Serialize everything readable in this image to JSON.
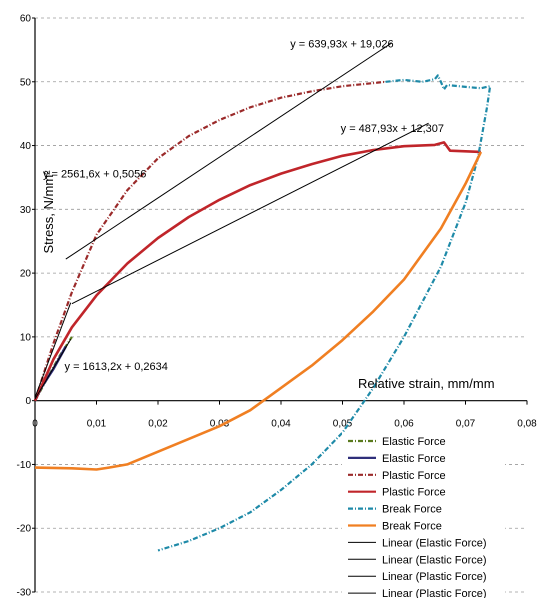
{
  "chart_data": {
    "type": "line",
    "xlabel": "Relative strain, mm/mm",
    "ylabel": "Stress, N/mm²",
    "xlim": [
      0,
      0.08
    ],
    "ylim": [
      -30,
      60
    ],
    "x_ticks": [
      "0",
      "0,01",
      "0,02",
      "0,03",
      "0,04",
      "0,05",
      "0,06",
      "0,07",
      "0,08"
    ],
    "y_ticks": [
      "-30",
      "-20",
      "-10",
      "0",
      "10",
      "20",
      "30",
      "40",
      "50",
      "60"
    ],
    "grid": "horizontal dashed",
    "legend_position": "bottom-right",
    "series": [
      {
        "name": "Elastic Force",
        "color": "#5a7a1e",
        "style": "dash-dot",
        "x": [
          0,
          0.002,
          0.004,
          0.006
        ],
        "y": [
          0,
          3.5,
          7,
          10
        ]
      },
      {
        "name": "Elastic Force",
        "color": "#2f2f7a",
        "style": "solid",
        "x": [
          0,
          0.001,
          0.003,
          0.005
        ],
        "y": [
          0,
          2,
          5,
          8.5
        ]
      },
      {
        "name": "Plastic Force",
        "color": "#9b2a2a",
        "style": "dash-dot",
        "x": [
          0,
          0.003,
          0.006,
          0.01,
          0.015,
          0.02,
          0.025,
          0.03,
          0.035,
          0.04,
          0.045,
          0.05,
          0.055,
          0.057
        ],
        "y": [
          0,
          9,
          17,
          26,
          33,
          38,
          41.5,
          44,
          46,
          47.5,
          48.5,
          49.3,
          49.8,
          50
        ]
      },
      {
        "name": "Plastic Force",
        "color": "#c0252a",
        "style": "solid",
        "x": [
          0,
          0.003,
          0.006,
          0.01,
          0.015,
          0.02,
          0.025,
          0.03,
          0.035,
          0.04,
          0.045,
          0.05,
          0.055,
          0.06,
          0.065,
          0.0665,
          0.0675,
          0.0725
        ],
        "y": [
          0,
          6.5,
          11.5,
          16.5,
          21.5,
          25.5,
          28.8,
          31.5,
          33.8,
          35.6,
          37.1,
          38.4,
          39.3,
          39.9,
          40.1,
          40.5,
          39.2,
          39
        ]
      },
      {
        "name": "Break Force",
        "color": "#1e8aa8",
        "style": "dash-dot",
        "x": [
          0.057,
          0.06,
          0.063,
          0.065,
          0.0655,
          0.066,
          0.0665,
          0.067,
          0.07,
          0.0725,
          0.074,
          0.0735,
          0.072,
          0.07,
          0.066,
          0.06,
          0.055,
          0.05,
          0.045,
          0.04,
          0.035,
          0.03,
          0.025,
          0.02
        ],
        "y": [
          50,
          50.3,
          50,
          50.4,
          51,
          50,
          48.8,
          49.5,
          49.2,
          49,
          49.3,
          46,
          38,
          31,
          21,
          10,
          2,
          -5,
          -10,
          -14,
          -17.5,
          -20,
          -22,
          -23.5
        ]
      },
      {
        "name": "Break Force",
        "color": "#f07f22",
        "style": "solid",
        "x": [
          0.0725,
          0.07,
          0.066,
          0.06,
          0.055,
          0.05,
          0.045,
          0.04,
          0.035,
          0.03,
          0.025,
          0.02,
          0.015,
          0.012,
          0.01,
          0.006,
          0
        ],
        "y": [
          39,
          34,
          27,
          19,
          14,
          9.5,
          5.5,
          2,
          -1.5,
          -4,
          -6,
          -8,
          -10,
          -10.5,
          -10.8,
          -10.6,
          -10.5
        ]
      },
      {
        "name": "Linear (Elastic Force)",
        "color": "#000000",
        "style": "solid",
        "x": [
          0,
          0.0058
        ],
        "y": [
          0.5056,
          15.36
        ]
      },
      {
        "name": "Linear (Elastic Force)",
        "color": "#000000",
        "style": "solid",
        "x": [
          0,
          0.0058
        ],
        "y": [
          0.2634,
          9.62
        ]
      },
      {
        "name": "Linear (Plastic Force)",
        "color": "#000000",
        "style": "solid",
        "x": [
          0.005,
          0.058
        ],
        "y": [
          22.2,
          56.1
        ]
      },
      {
        "name": "Linear (Plastic Force)",
        "color": "#000000",
        "style": "solid",
        "x": [
          0.006,
          0.064
        ],
        "y": [
          15.2,
          43.5
        ]
      }
    ],
    "annotations": [
      {
        "text": "y = 639,93x + 19,026",
        "x": 0.0415,
        "y": 55.4
      },
      {
        "text": "y = 487,93x + 12,307",
        "x": 0.0497,
        "y": 42.1
      },
      {
        "text": "y = 2561,6x + 0,5056",
        "x": 0.0013,
        "y": 35.0
      },
      {
        "text": "y = 1613,2x + 0,2634",
        "x": 0.0048,
        "y": 4.8
      }
    ]
  }
}
